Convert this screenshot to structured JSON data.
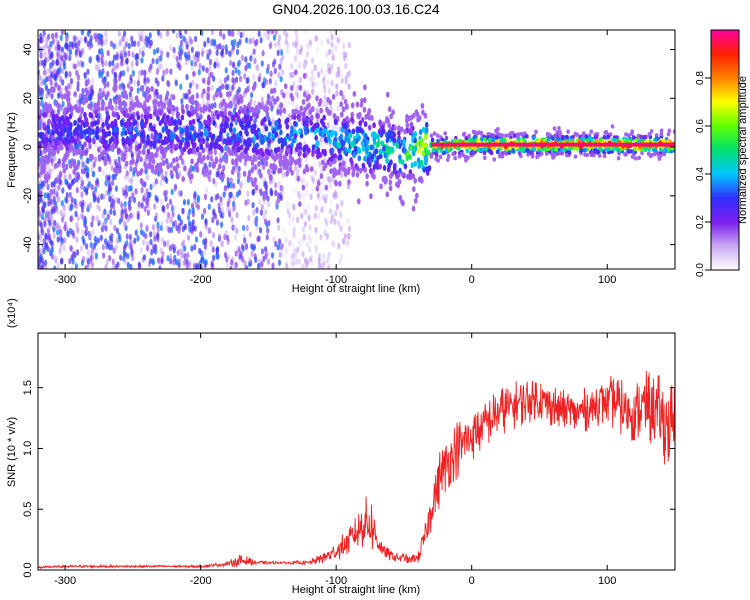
{
  "title": "GN04.2026.100.03.16.C24",
  "chart_data": [
    {
      "type": "heatmap",
      "xlabel": "Height of straight line (km)",
      "ylabel": "Frequency (Hz)",
      "xlim": [
        -320,
        150
      ],
      "ylim": [
        -50,
        48
      ],
      "x_ticks": [
        -300,
        -200,
        -100,
        0,
        100
      ],
      "y_ticks": [
        -40,
        -20,
        0,
        20,
        40
      ],
      "grid": false,
      "colorbar": {
        "label": "Normalized spectral amplitude",
        "range": [
          0,
          1
        ],
        "ticks": [
          0.0,
          0.2,
          0.4,
          0.6,
          0.8
        ],
        "colors": [
          "#ffffff",
          "#c8a8f0",
          "#7b1ff0",
          "#3030ff",
          "#00c8ff",
          "#00e070",
          "#60ff00",
          "#ffff00",
          "#ff8000",
          "#ff2000",
          "#ff00a0"
        ]
      },
      "features": {
        "noise_band": {
          "x": [
            -320,
            -130
          ],
          "freq": [
            -50,
            48
          ],
          "amplitude": 0.15
        },
        "signal_track": [
          {
            "x": -320,
            "freq": 7,
            "amplitude": 0.3
          },
          {
            "x": -200,
            "freq": 6,
            "amplitude": 0.35
          },
          {
            "x": -120,
            "freq": 5,
            "amplitude": 0.4
          },
          {
            "x": -90,
            "freq": 2,
            "amplitude": 0.45
          },
          {
            "x": -70,
            "freq": 0,
            "amplitude": 0.5
          },
          {
            "x": -50,
            "freq": -3,
            "amplitude": 0.5
          },
          {
            "x": -30,
            "freq": 0,
            "amplitude": 0.8
          },
          {
            "x": 0,
            "freq": 1,
            "amplitude": 0.95
          },
          {
            "x": 100,
            "freq": 1,
            "amplitude": 0.95
          },
          {
            "x": 150,
            "freq": 1,
            "amplitude": 0.9
          }
        ]
      }
    },
    {
      "type": "line",
      "xlabel": "Height of straight line (km)",
      "ylabel": "SNR (10 * v/v)",
      "y_multiplier": "(x10⁴)",
      "xlim": [
        -320,
        150
      ],
      "ylim": [
        0,
        1.95
      ],
      "x_ticks": [
        -300,
        -200,
        -100,
        0,
        100
      ],
      "y_ticks": [
        0.0,
        0.5,
        1.0,
        1.5
      ],
      "y_tick_labels": [
        "0.0",
        "0.5",
        "1.0",
        "1.5"
      ],
      "grid": false,
      "series": [
        {
          "color": "#ee2222",
          "x": [
            -320,
            -300,
            -280,
            -260,
            -240,
            -220,
            -200,
            -180,
            -170,
            -160,
            -140,
            -120,
            -110,
            -100,
            -95,
            -90,
            -85,
            -80,
            -75,
            -70,
            -65,
            -60,
            -55,
            -50,
            -45,
            -40,
            -35,
            -30,
            -25,
            -20,
            -15,
            -10,
            -5,
            0,
            10,
            20,
            30,
            40,
            50,
            60,
            70,
            80,
            90,
            100,
            110,
            120,
            130,
            140,
            150
          ],
          "y": [
            0.02,
            0.03,
            0.03,
            0.03,
            0.03,
            0.03,
            0.03,
            0.05,
            0.08,
            0.06,
            0.06,
            0.06,
            0.1,
            0.15,
            0.2,
            0.25,
            0.3,
            0.38,
            0.4,
            0.25,
            0.15,
            0.12,
            0.1,
            0.1,
            0.08,
            0.1,
            0.25,
            0.5,
            0.72,
            0.85,
            0.95,
            1.0,
            1.05,
            1.1,
            1.2,
            1.3,
            1.35,
            1.4,
            1.4,
            1.35,
            1.3,
            1.3,
            1.35,
            1.4,
            1.35,
            1.3,
            1.35,
            1.25,
            1.15
          ],
          "noise_amplitude": [
            0.01,
            0.01,
            0.01,
            0.01,
            0.01,
            0.01,
            0.01,
            0.02,
            0.06,
            0.02,
            0.01,
            0.02,
            0.05,
            0.08,
            0.1,
            0.12,
            0.15,
            0.2,
            0.25,
            0.12,
            0.06,
            0.05,
            0.04,
            0.04,
            0.04,
            0.05,
            0.12,
            0.2,
            0.25,
            0.25,
            0.25,
            0.25,
            0.25,
            0.22,
            0.2,
            0.2,
            0.2,
            0.2,
            0.2,
            0.18,
            0.18,
            0.18,
            0.2,
            0.2,
            0.25,
            0.25,
            0.3,
            0.35,
            0.4
          ]
        }
      ]
    }
  ]
}
